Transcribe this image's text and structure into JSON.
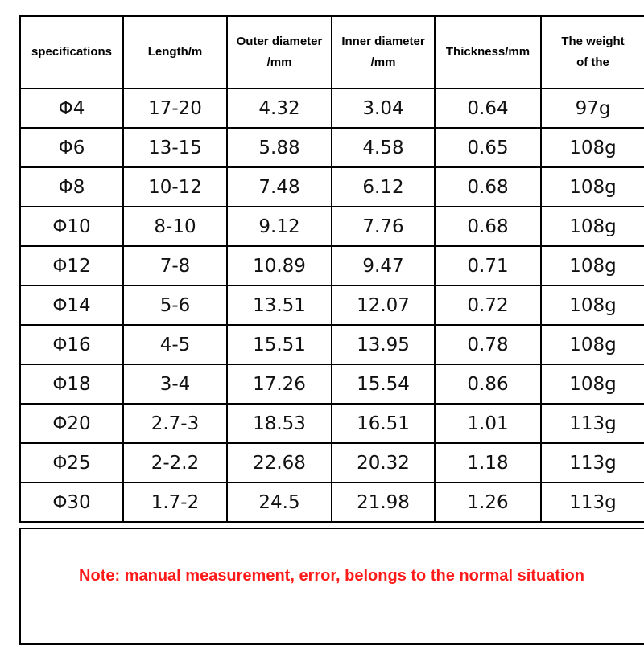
{
  "headers": [
    {
      "lines": [
        "specifications"
      ]
    },
    {
      "lines": [
        "Length/m"
      ]
    },
    {
      "lines": [
        "Outer diameter",
        "/mm"
      ]
    },
    {
      "lines": [
        "Inner diameter",
        "/mm"
      ]
    },
    {
      "lines": [
        "Thickness/mm"
      ]
    },
    {
      "lines": [
        "The weight",
        "of the"
      ]
    }
  ],
  "rows": [
    [
      "Φ4",
      "17-20",
      "4.32",
      "3.04",
      "0.64",
      "97g"
    ],
    [
      "Φ6",
      "13-15",
      "5.88",
      "4.58",
      "0.65",
      "108g"
    ],
    [
      "Φ8",
      "10-12",
      "7.48",
      "6.12",
      "0.68",
      "108g"
    ],
    [
      "Φ10",
      "8-10",
      "9.12",
      "7.76",
      "0.68",
      "108g"
    ],
    [
      "Φ12",
      "7-8",
      "10.89",
      "9.47",
      "0.71",
      "108g"
    ],
    [
      "Φ14",
      "5-6",
      "13.51",
      "12.07",
      "0.72",
      "108g"
    ],
    [
      "Φ16",
      "4-5",
      "15.51",
      "13.95",
      "0.78",
      "108g"
    ],
    [
      "Φ18",
      "3-4",
      "17.26",
      "15.54",
      "0.86",
      "108g"
    ],
    [
      "Φ20",
      "2.7-3",
      "18.53",
      "16.51",
      "1.01",
      "113g"
    ],
    [
      "Φ25",
      "2-2.2",
      "22.68",
      "20.32",
      "1.18",
      "113g"
    ],
    [
      "Φ30",
      "1.7-2",
      "24.5",
      "21.98",
      "1.26",
      "113g"
    ]
  ],
  "note": "Note: manual measurement, error, belongs to the normal situation",
  "colors": {
    "note": "#ff1a1a",
    "grid": "#000000"
  }
}
